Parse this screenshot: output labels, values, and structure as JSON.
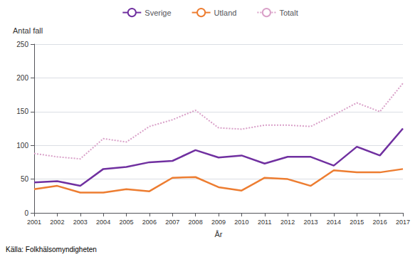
{
  "chart_data": {
    "type": "line",
    "x": [
      2001,
      2002,
      2003,
      2004,
      2005,
      2006,
      2007,
      2008,
      2009,
      2010,
      2011,
      2012,
      2013,
      2014,
      2015,
      2016,
      2017
    ],
    "series": [
      {
        "name": "Sverige",
        "color": "#7030a0",
        "line_style": "solid",
        "values": [
          45,
          47,
          40,
          65,
          68,
          75,
          77,
          93,
          82,
          85,
          73,
          83,
          83,
          70,
          98,
          85,
          125
        ]
      },
      {
        "name": "Utland",
        "color": "#ed7d31",
        "line_style": "solid",
        "values": [
          35,
          40,
          30,
          30,
          35,
          32,
          52,
          53,
          38,
          33,
          52,
          50,
          40,
          63,
          60,
          60,
          65
        ]
      },
      {
        "name": "Totalt",
        "color": "#d9a0c8",
        "line_style": "dotted",
        "values": [
          88,
          83,
          80,
          110,
          105,
          128,
          138,
          152,
          126,
          124,
          130,
          130,
          128,
          145,
          163,
          150,
          192
        ]
      }
    ],
    "xlabel": "År",
    "ylabel": "Antal fall",
    "annotation": "Källa: Folkhälsomyndigheten",
    "xlim": [
      2001,
      2017
    ],
    "xticks": [
      2001,
      2002,
      2003,
      2004,
      2005,
      2006,
      2007,
      2008,
      2009,
      2010,
      2011,
      2012,
      2013,
      2014,
      2015,
      2016,
      2017
    ],
    "ylim": [
      0,
      250
    ],
    "yticks": [
      0,
      50,
      100,
      150,
      200,
      250
    ],
    "grid": true,
    "legend": "top"
  }
}
